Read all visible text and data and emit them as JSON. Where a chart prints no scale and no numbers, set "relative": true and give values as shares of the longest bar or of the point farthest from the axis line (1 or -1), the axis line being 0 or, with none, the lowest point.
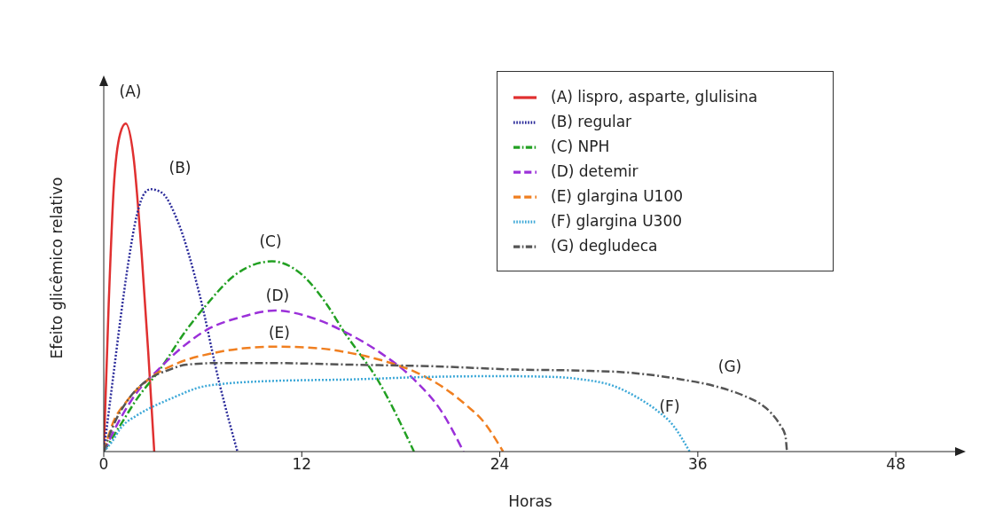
{
  "chart_data": {
    "type": "line",
    "relative": true,
    "xlabel": "Horas",
    "ylabel": "Efeito glicêmico relativo",
    "xlim": [
      0,
      51.7
    ],
    "xticks": [
      0,
      12,
      24,
      36,
      48
    ],
    "grid": false,
    "legend": "top right",
    "marker": "none",
    "series": [
      {
        "name": "(A) lispro, asparte, glulisina",
        "color": "#e03030",
        "line_style": "solid",
        "x": [
          0,
          0.3,
          0.6,
          1,
          1.33,
          1.8,
          2.3,
          2.7,
          3.06
        ],
        "values": [
          0,
          0.45,
          0.8,
          0.97,
          1,
          0.9,
          0.6,
          0.3,
          0
        ]
      },
      {
        "name": "(B) regular",
        "color": "#2b2b9a",
        "line_style": "dotted",
        "x": [
          0,
          0.5,
          1,
          1.5,
          2,
          2.5,
          2.85,
          3.5,
          4.5,
          5.8,
          7,
          8.1
        ],
        "values": [
          0,
          0.2,
          0.4,
          0.58,
          0.72,
          0.79,
          0.8,
          0.79,
          0.7,
          0.48,
          0.21,
          0
        ]
      },
      {
        "name": "(C) NPH",
        "color": "#22a022",
        "line_style": "dashdot",
        "x": [
          0,
          1,
          2,
          3.4,
          5,
          6.1,
          8,
          10.2,
          12,
          13.5,
          14.5,
          16.7,
          18.8
        ],
        "values": [
          0,
          0.08,
          0.16,
          0.25,
          0.37,
          0.44,
          0.54,
          0.58,
          0.54,
          0.45,
          0.37,
          0.21,
          0
        ]
      },
      {
        "name": "(D) detemir",
        "color": "#9b30d9",
        "line_style": "dashed",
        "x": [
          0,
          1,
          2,
          3.3,
          4.8,
          6.2,
          8.3,
          10.4,
          12.5,
          14.8,
          16.8,
          18.8,
          20.5,
          21.8
        ],
        "values": [
          0,
          0.1,
          0.18,
          0.25,
          0.32,
          0.37,
          0.41,
          0.43,
          0.41,
          0.36,
          0.3,
          0.22,
          0.12,
          0
        ]
      },
      {
        "name": "(E) glargina U100",
        "color": "#f07f20",
        "line_style": "dashed",
        "x": [
          0,
          0.5,
          1.5,
          2.7,
          4.5,
          6.6,
          8.5,
          10.5,
          13,
          15,
          17,
          19,
          20.6,
          22,
          22.9,
          24.2
        ],
        "values": [
          0,
          0.08,
          0.16,
          0.22,
          0.27,
          0.3,
          0.315,
          0.32,
          0.315,
          0.3,
          0.276,
          0.24,
          0.195,
          0.14,
          0.098,
          0
        ]
      },
      {
        "name": "(F) glargina U300",
        "color": "#3fa9d8",
        "line_style": "dotted",
        "x": [
          0,
          0.5,
          1,
          2,
          2.7,
          4,
          6.2,
          10,
          15,
          20,
          24,
          27,
          29,
          30.9,
          32.5,
          33.4,
          34.5,
          35.5
        ],
        "values": [
          0,
          0.03,
          0.07,
          0.11,
          0.13,
          0.16,
          0.2,
          0.215,
          0.22,
          0.228,
          0.23,
          0.228,
          0.22,
          0.2,
          0.16,
          0.13,
          0.08,
          0
        ]
      },
      {
        "name": "(G) degludeca",
        "color": "#555555",
        "line_style": "dashdot",
        "x": [
          0,
          0.5,
          1.5,
          2.7,
          4,
          5,
          7,
          10,
          15,
          20,
          25,
          28.9,
          32,
          35,
          37,
          38.8,
          39.8,
          40.4,
          41,
          41.3,
          41.4
        ],
        "values": [
          0,
          0.07,
          0.16,
          0.22,
          0.25,
          0.265,
          0.27,
          0.27,
          0.265,
          0.26,
          0.25,
          0.247,
          0.24,
          0.22,
          0.2,
          0.17,
          0.145,
          0.12,
          0.08,
          0.05,
          0
        ]
      }
    ],
    "annotations": [
      "(A)",
      "(B)",
      "(C)",
      "(D)",
      "(E)",
      "(F)",
      "(G)"
    ]
  }
}
